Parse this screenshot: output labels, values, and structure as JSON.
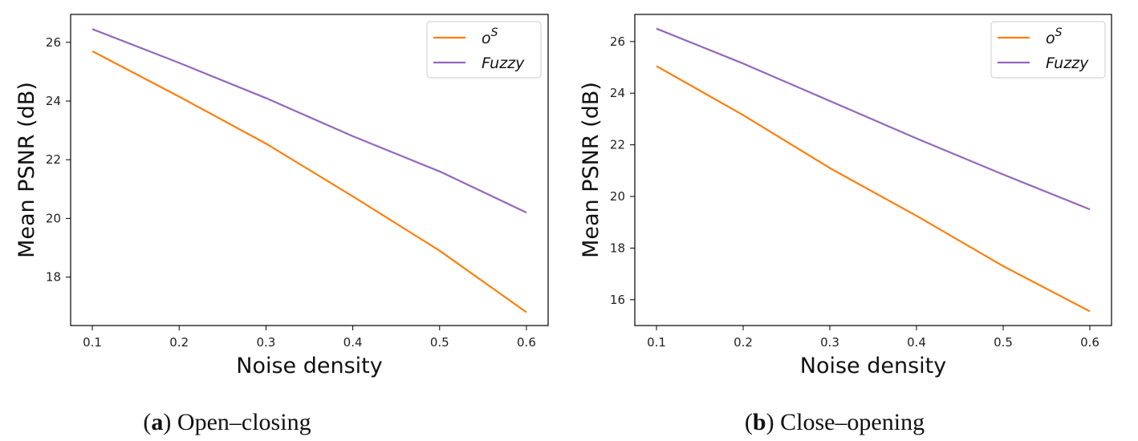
{
  "figure": {
    "captions": [
      {
        "letter": "a",
        "text": "Open–closing"
      },
      {
        "letter": "b",
        "text": "Close–opening"
      }
    ]
  },
  "chart_data": [
    {
      "type": "line",
      "title": "",
      "xlabel": "Noise density",
      "ylabel": "Mean PSNR (dB)",
      "x": [
        0.1,
        0.2,
        0.3,
        0.4,
        0.5,
        0.6
      ],
      "xticks": [
        "0.1",
        "0.2",
        "0.3",
        "0.4",
        "0.5",
        "0.6"
      ],
      "xlim": [
        0.075,
        0.625
      ],
      "yticks": [
        18,
        20,
        22,
        24,
        26
      ],
      "ylim": [
        16.35,
        26.95
      ],
      "grid": false,
      "legend_position": "top-right",
      "series": [
        {
          "name": "o",
          "name_superscript": "S",
          "color": "#ff7f0e",
          "values": [
            25.7,
            24.15,
            22.55,
            20.75,
            18.9,
            16.8
          ]
        },
        {
          "name": "Fuzzy",
          "color": "#9467bd",
          "values": [
            26.45,
            25.3,
            24.1,
            22.8,
            21.6,
            20.2
          ]
        }
      ]
    },
    {
      "type": "line",
      "title": "",
      "xlabel": "Noise density",
      "ylabel": "Mean PSNR (dB)",
      "x": [
        0.1,
        0.2,
        0.3,
        0.4,
        0.5,
        0.6
      ],
      "xticks": [
        "0.1",
        "0.2",
        "0.3",
        "0.4",
        "0.5",
        "0.6"
      ],
      "xlim": [
        0.075,
        0.625
      ],
      "yticks": [
        16,
        18,
        20,
        22,
        24,
        26
      ],
      "ylim": [
        15.0,
        27.05
      ],
      "grid": false,
      "legend_position": "top-right",
      "series": [
        {
          "name": "o",
          "name_superscript": "S",
          "color": "#ff7f0e",
          "values": [
            25.05,
            23.15,
            21.1,
            19.25,
            17.3,
            15.55
          ]
        },
        {
          "name": "Fuzzy",
          "color": "#9467bd",
          "values": [
            26.5,
            25.15,
            23.7,
            22.25,
            20.85,
            19.5
          ]
        }
      ]
    }
  ]
}
